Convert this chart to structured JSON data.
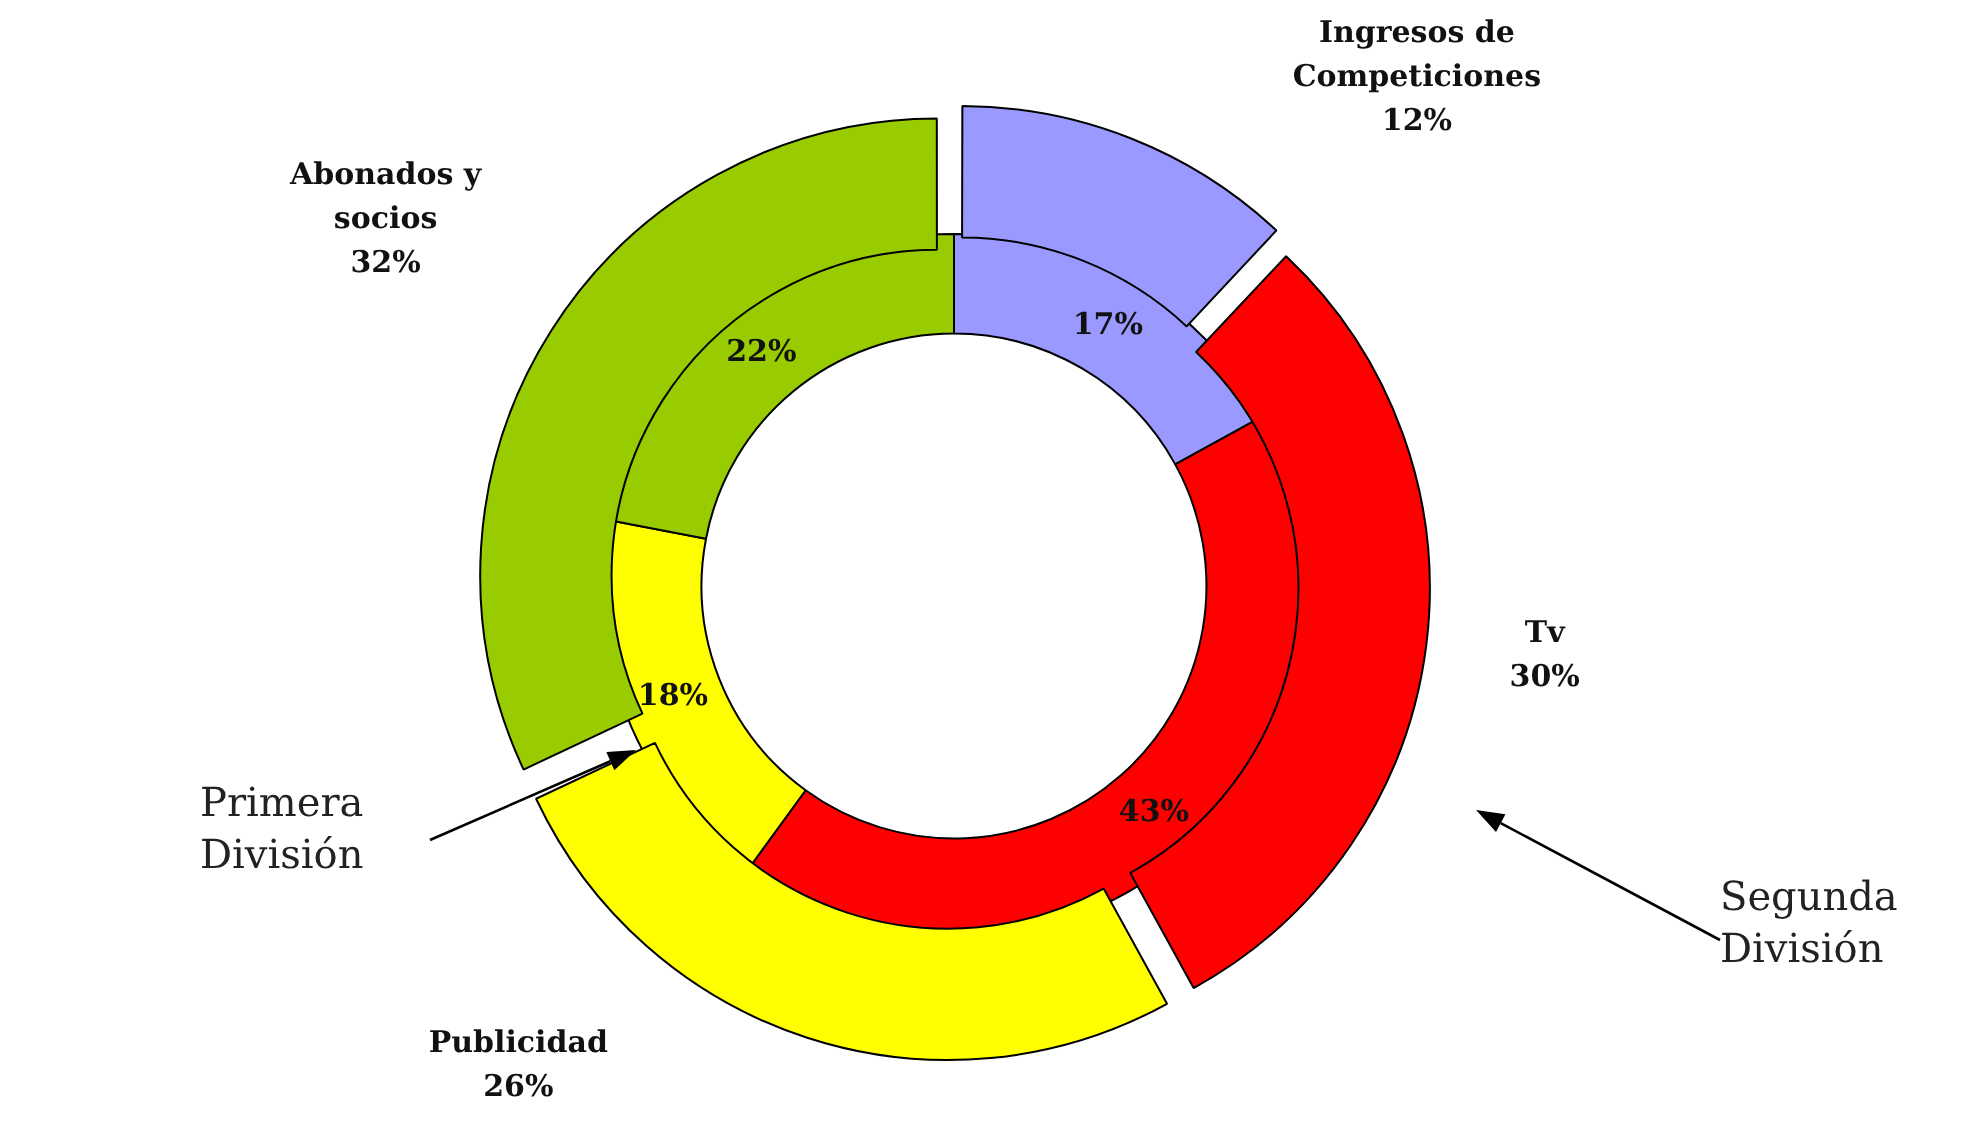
{
  "chart_data": {
    "type": "donut",
    "categories": [
      "Ingresos de Competiciones",
      "Tv",
      "Publicidad",
      "Abonados y socios"
    ],
    "colors": [
      "#9999ff",
      "#ff0000",
      "#ffff00",
      "#99cc00"
    ],
    "series": [
      {
        "name": "Primera División",
        "values": [
          17,
          43,
          18,
          22
        ],
        "value_labels": [
          "17%",
          "43%",
          "18%",
          "22%"
        ]
      },
      {
        "name": "Segunda División",
        "values": [
          12,
          30,
          26,
          32
        ],
        "value_labels": [
          "12%",
          "30%",
          "26%",
          "32%"
        ]
      }
    ]
  }
}
